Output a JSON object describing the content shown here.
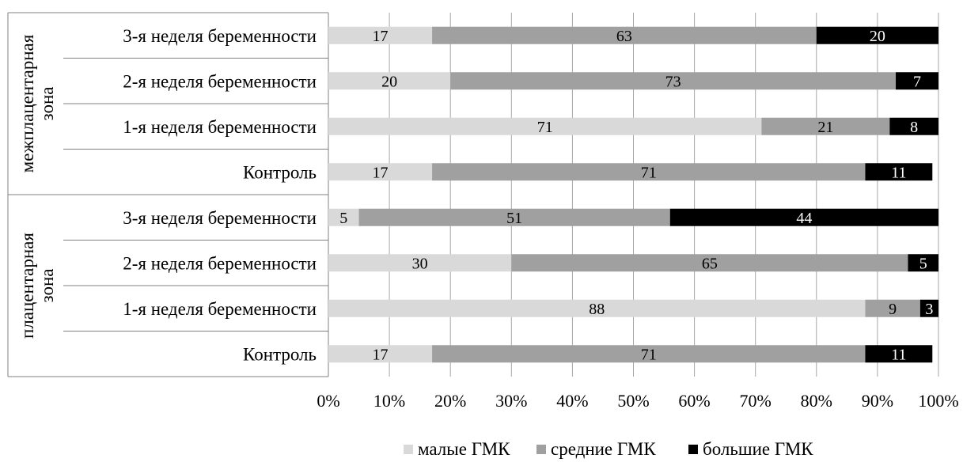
{
  "chart_data": {
    "type": "bar",
    "stacked": "percent",
    "orientation": "horizontal",
    "groups": [
      {
        "label": "межплацентарная зона",
        "categories": [
          "3-я неделя беременности",
          "2-я неделя беременности",
          "1-я неделя беременности",
          "Контроль"
        ]
      },
      {
        "label": "плацентарная зона",
        "categories": [
          "3-я неделя беременности",
          "2-я неделя беременности",
          "1-я неделя беременности",
          "Контроль"
        ]
      }
    ],
    "series": [
      {
        "name": "малые ГМК",
        "color": "#d9d9d9",
        "label_color": "#000000",
        "values": [
          17,
          20,
          71,
          17,
          5,
          30,
          88,
          17
        ]
      },
      {
        "name": "средние ГМК",
        "color": "#a0a0a0",
        "label_color": "#000000",
        "values": [
          63,
          73,
          21,
          71,
          51,
          65,
          9,
          71
        ]
      },
      {
        "name": "большие ГМК",
        "color": "#000000",
        "label_color": "#ffffff",
        "values": [
          20,
          7,
          8,
          11,
          44,
          5,
          3,
          11
        ]
      }
    ],
    "x_ticks": [
      "0%",
      "10%",
      "20%",
      "30%",
      "40%",
      "50%",
      "60%",
      "70%",
      "80%",
      "90%",
      "100%"
    ],
    "xlim": [
      0,
      100
    ],
    "grid": true,
    "legend_position": "bottom-right"
  }
}
